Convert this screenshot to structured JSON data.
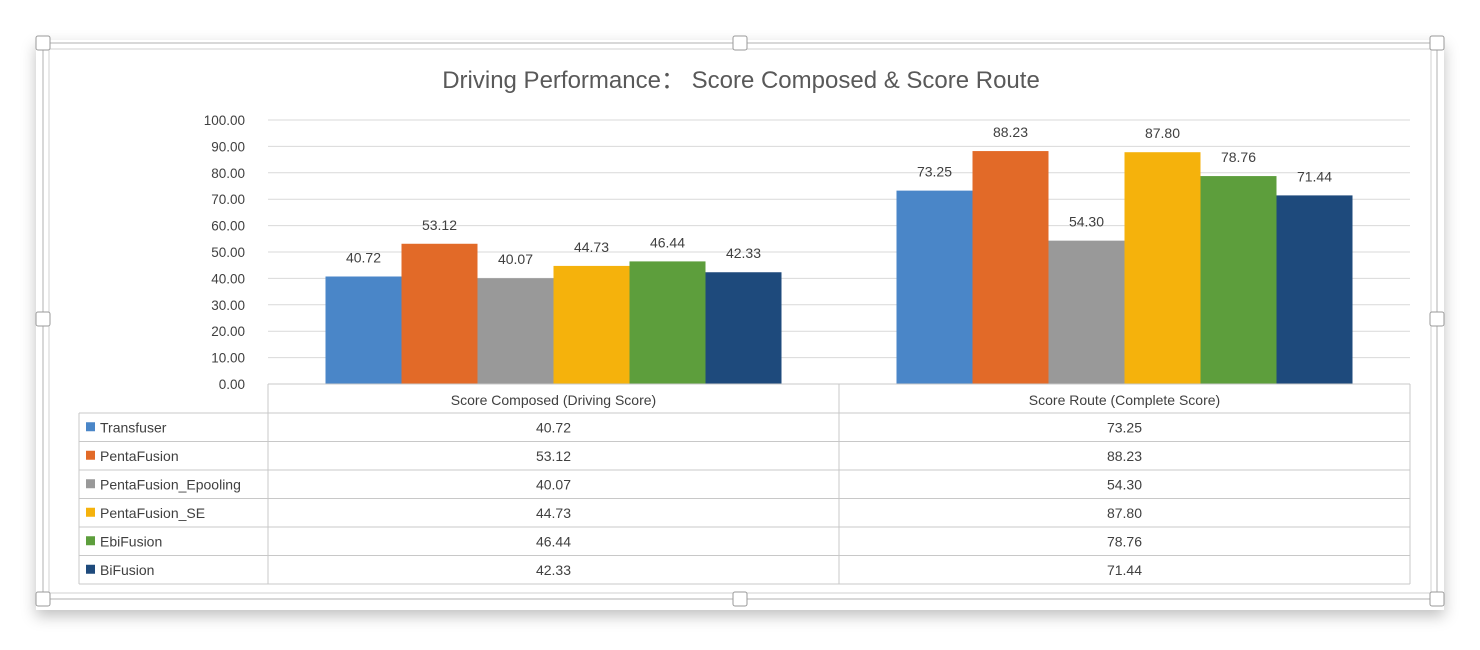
{
  "chart_data": {
    "type": "bar",
    "title": "Driving Performance： Score Composed & Score Route",
    "categories": [
      "Score Composed (Driving Score)",
      "Score Route (Complete Score)"
    ],
    "series": [
      {
        "name": "Transfuser",
        "color": "#4a86c8",
        "values": [
          40.72,
          73.25
        ]
      },
      {
        "name": "PentaFusion",
        "color": "#e26a28",
        "values": [
          53.12,
          88.23
        ]
      },
      {
        "name": "PentaFusion_Epooling",
        "color": "#999999",
        "values": [
          40.07,
          54.3
        ]
      },
      {
        "name": "PentaFusion_SE",
        "color": "#f5b20c",
        "values": [
          44.73,
          87.8
        ]
      },
      {
        "name": "EbiFusion",
        "color": "#5d9e3c",
        "values": [
          46.44,
          78.76
        ]
      },
      {
        "name": "BiFusion",
        "color": "#1e4a7c",
        "values": [
          42.33,
          71.44
        ]
      }
    ],
    "ylim": [
      0,
      100
    ],
    "yticks": [
      "0.00",
      "10.00",
      "20.00",
      "30.00",
      "40.00",
      "50.00",
      "60.00",
      "70.00",
      "80.00",
      "90.00",
      "100.00"
    ],
    "value_format": "2 decimals",
    "grid": true,
    "legend": "data table below plot"
  }
}
